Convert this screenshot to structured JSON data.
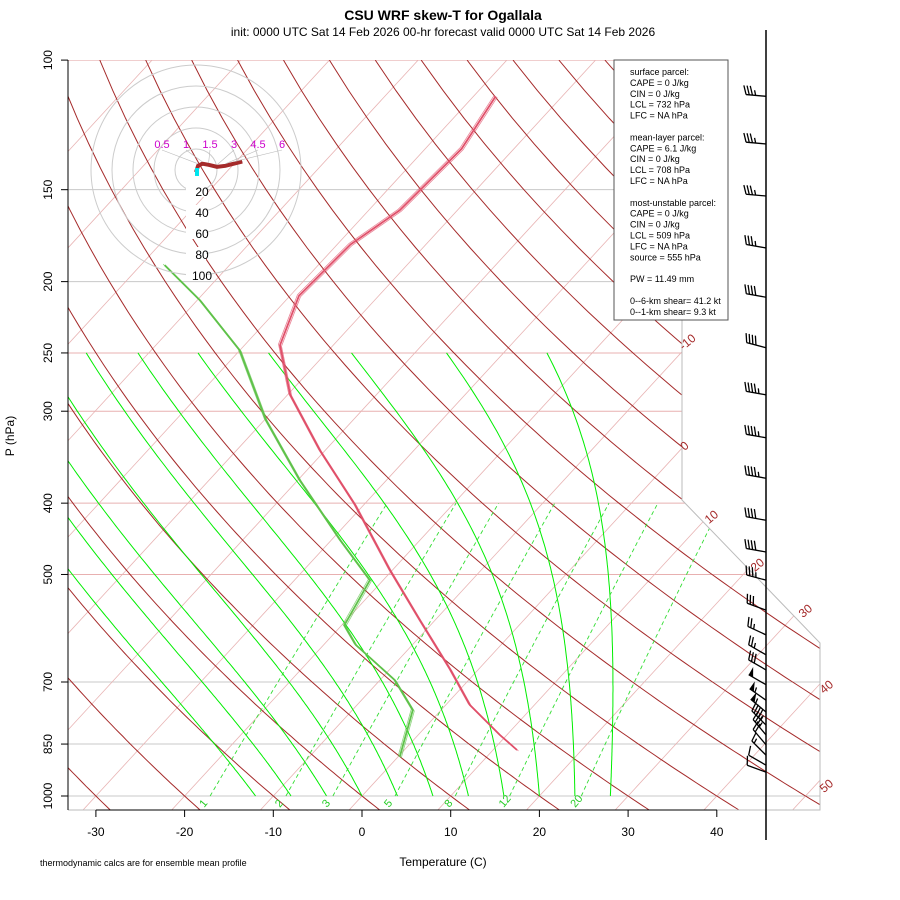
{
  "chart_data": {
    "type": "skew-t",
    "title": "CSU WRF skew-T for Ogallala",
    "subtitle": "init: 0000 UTC Sat 14 Feb 2026    00-hr forecast valid 0000 UTC Sat 14 Feb 2026",
    "xlabel": "Temperature (C)",
    "ylabel": "P (hPa)",
    "footnote": "thermodynamic calcs are for ensemble mean profile",
    "x_ticks": [
      -30,
      -20,
      -10,
      0,
      10,
      20,
      30,
      40
    ],
    "p_ticks": [
      100,
      150,
      200,
      250,
      300,
      400,
      500,
      700,
      850,
      1000
    ],
    "xlim": [
      -33,
      45
    ],
    "plim": [
      1050,
      100
    ],
    "isotherm_labels": [
      -10,
      0,
      10,
      20,
      30,
      40,
      50
    ],
    "mixing_ratio_labels": [
      1,
      2,
      3,
      5,
      8,
      12,
      20
    ],
    "colors": {
      "temperature": "#e0506a",
      "dewpoint": "#5fc24a",
      "dry_adiabat": "#a52a2a",
      "moist_adiabat": "#00ee00",
      "mixing_ratio": "#33dd33",
      "isotherm": "#e8b4b4",
      "isobar": "#c8c8c8",
      "isotherm_label": "#a52a2a"
    },
    "temperature": [
      {
        "p": 866,
        "t": 12.7
      },
      {
        "p": 826,
        "t": 9.2
      },
      {
        "p": 752,
        "t": 2.7
      },
      {
        "p": 674,
        "t": -3.1
      },
      {
        "p": 577,
        "t": -11.7
      },
      {
        "p": 493,
        "t": -20.3
      },
      {
        "p": 402,
        "t": -31.0
      },
      {
        "p": 339,
        "t": -40.6
      },
      {
        "p": 285,
        "t": -49.7
      },
      {
        "p": 244,
        "t": -56.0
      },
      {
        "p": 209,
        "t": -59.0
      },
      {
        "p": 178,
        "t": -58.5
      },
      {
        "p": 160,
        "t": -56.5
      },
      {
        "p": 132,
        "t": -55.9
      },
      {
        "p": 112,
        "t": -57.5
      }
    ],
    "dewpoint": [
      {
        "p": 885,
        "t": 0.2
      },
      {
        "p": 764,
        "t": -3.2
      },
      {
        "p": 696,
        "t": -8.3
      },
      {
        "p": 623,
        "t": -16.4
      },
      {
        "p": 586,
        "t": -19.7
      },
      {
        "p": 509,
        "t": -21.5
      },
      {
        "p": 449,
        "t": -29.0
      },
      {
        "p": 372,
        "t": -39.8
      },
      {
        "p": 308,
        "t": -49.9
      },
      {
        "p": 248,
        "t": -60.0
      },
      {
        "p": 212,
        "t": -69.7
      },
      {
        "p": 190,
        "t": -77.3
      }
    ],
    "winds": [
      {
        "p": 112,
        "spd": 35,
        "dir": 275
      },
      {
        "p": 130,
        "spd": 35,
        "dir": 275
      },
      {
        "p": 153,
        "spd": 35,
        "dir": 275
      },
      {
        "p": 180,
        "spd": 35,
        "dir": 280
      },
      {
        "p": 210,
        "spd": 40,
        "dir": 280
      },
      {
        "p": 246,
        "spd": 40,
        "dir": 285
      },
      {
        "p": 285,
        "spd": 45,
        "dir": 280
      },
      {
        "p": 326,
        "spd": 45,
        "dir": 280
      },
      {
        "p": 370,
        "spd": 45,
        "dir": 280
      },
      {
        "p": 422,
        "spd": 40,
        "dir": 280
      },
      {
        "p": 466,
        "spd": 40,
        "dir": 280
      },
      {
        "p": 509,
        "spd": 35,
        "dir": 285
      },
      {
        "p": 559,
        "spd": 30,
        "dir": 290
      },
      {
        "p": 604,
        "spd": 25,
        "dir": 295
      },
      {
        "p": 643,
        "spd": 25,
        "dir": 300
      },
      {
        "p": 674,
        "spd": 30,
        "dir": 300
      },
      {
        "p": 706,
        "spd": 50,
        "dir": 300
      },
      {
        "p": 741,
        "spd": 55,
        "dir": 305
      },
      {
        "p": 769,
        "spd": 55,
        "dir": 310
      },
      {
        "p": 801,
        "spd": 45,
        "dir": 315
      },
      {
        "p": 826,
        "spd": 35,
        "dir": 320
      },
      {
        "p": 852,
        "spd": 20,
        "dir": 320
      },
      {
        "p": 880,
        "spd": 15,
        "dir": 315
      },
      {
        "p": 908,
        "spd": 10,
        "dir": 300
      },
      {
        "p": 928,
        "spd": 10,
        "dir": 290
      }
    ],
    "hodograph": {
      "ring_labels": [
        20,
        40,
        60,
        80,
        100
      ],
      "trace": [
        [
          0,
          -2
        ],
        [
          2,
          4
        ],
        [
          6,
          6
        ],
        [
          12,
          5
        ],
        [
          20,
          3
        ],
        [
          28,
          4
        ],
        [
          36,
          6
        ],
        [
          44,
          8
        ]
      ],
      "trace_labels": [
        "0.5",
        "1",
        "1.5",
        "3",
        "4.5",
        "6"
      ]
    },
    "info_box": [
      "surface parcel:",
      "CAPE = 0 J/kg",
      "CIN = 0 J/kg",
      "LCL = 732 hPa",
      "LFC = NA hPa",
      "",
      "mean-layer parcel:",
      "CAPE = 6.1 J/kg",
      "CIN = 0 J/kg",
      "LCL = 708 hPa",
      "LFC = NA hPa",
      "",
      "most-unstable parcel:",
      "CAPE = 0 J/kg",
      "CIN = 0 J/kg",
      "LCL = 509 hPa",
      "LFC = NA hPa",
      "source = 555 hPa",
      "",
      "PW =  11.49 mm",
      "",
      "0--6-km shear= 41.2 kt",
      "0--1-km shear= 9.3 kt"
    ]
  }
}
